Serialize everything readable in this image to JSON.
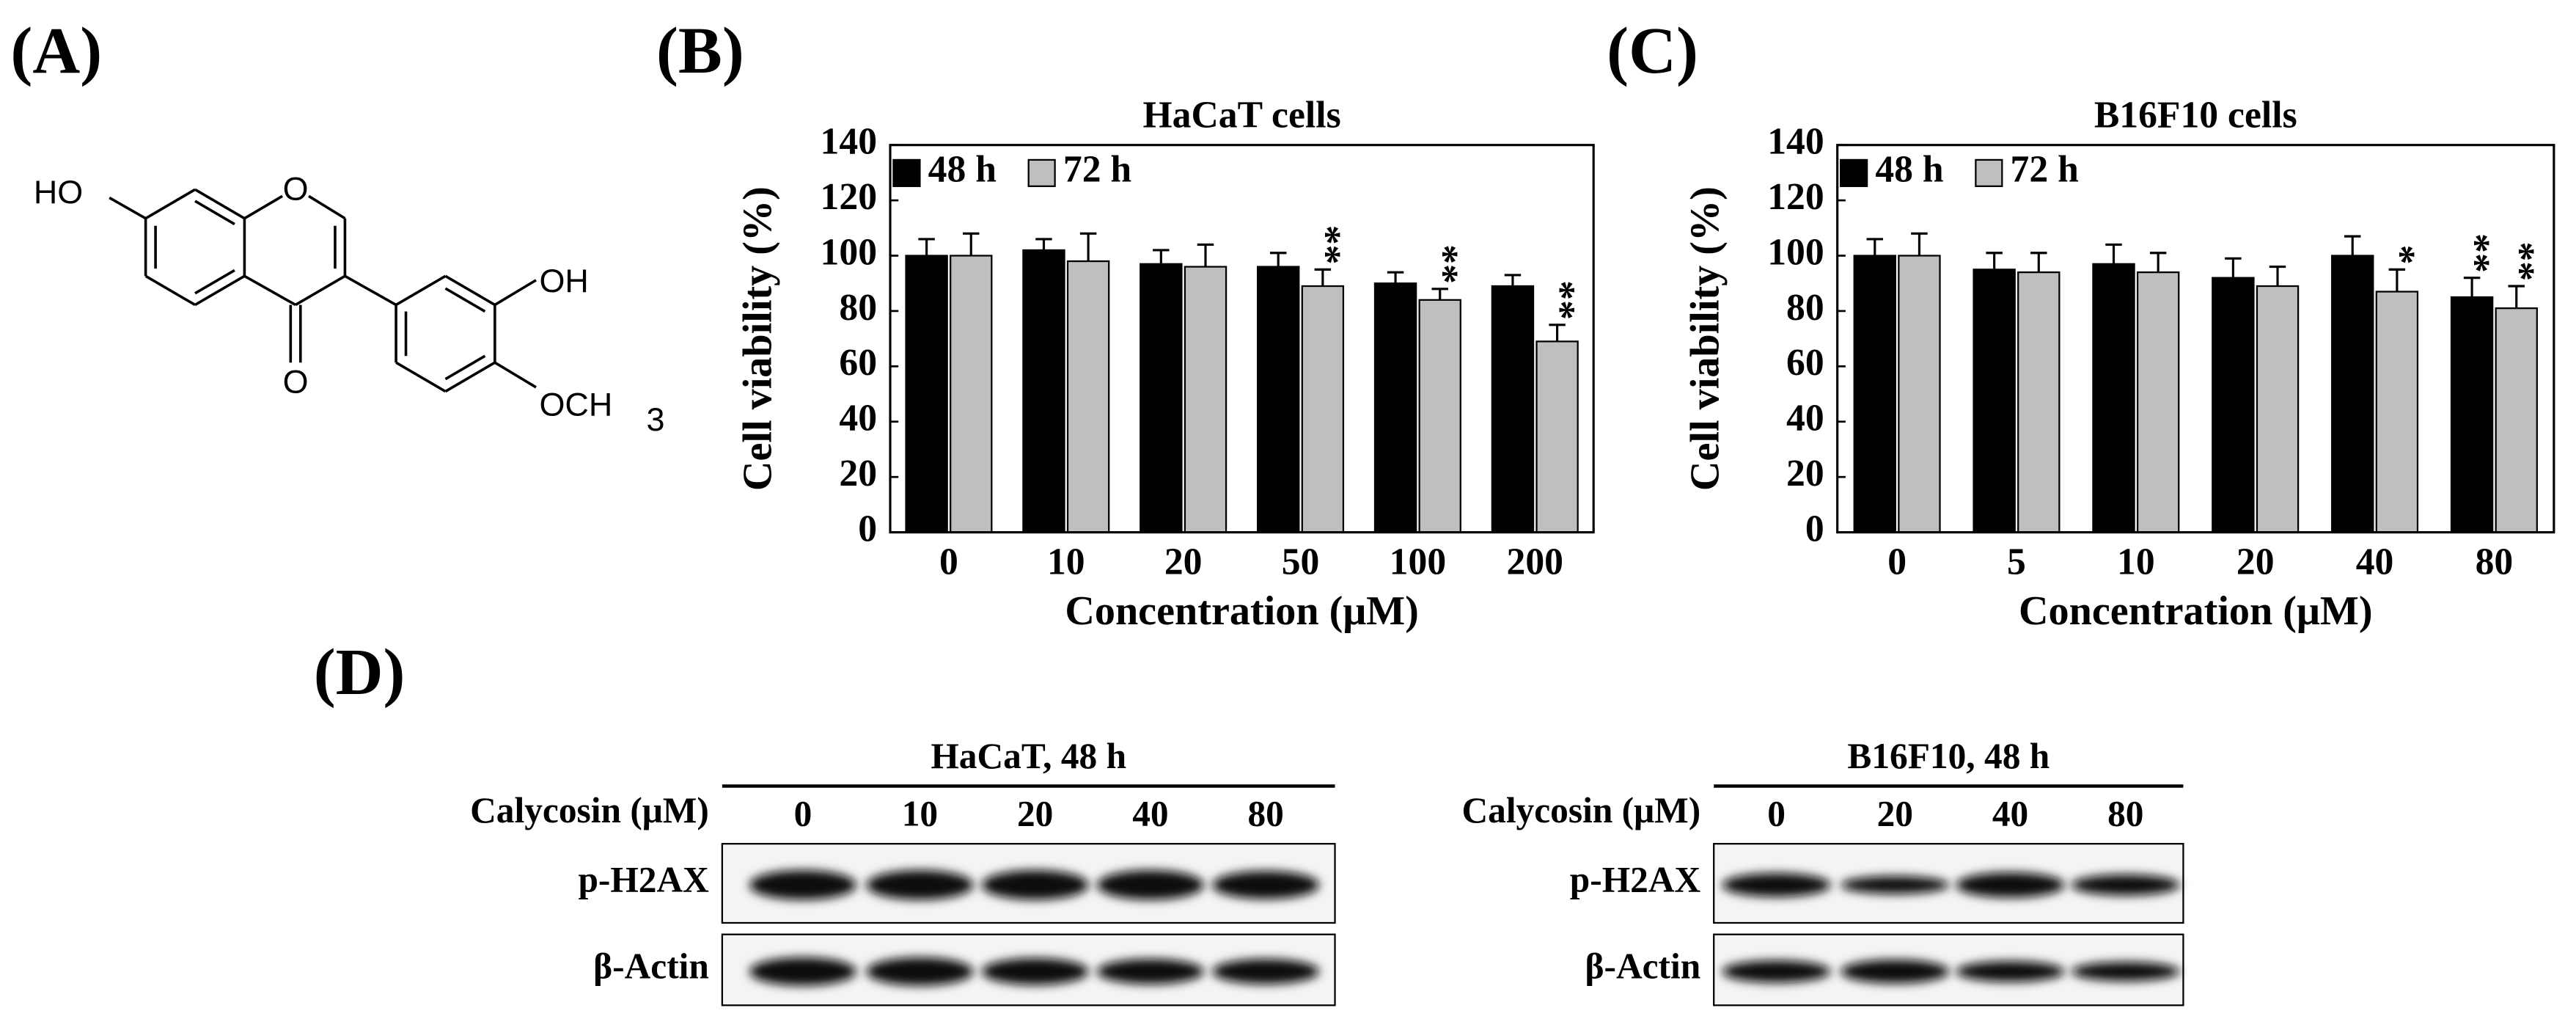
{
  "panel_labels": [
    "(A)",
    "(B)",
    "(C)",
    "(D)"
  ],
  "structure": {
    "labels": [
      "HO",
      "O",
      "O",
      "OH",
      "OCH",
      "3"
    ]
  },
  "chart_data": [
    {
      "type": "bar",
      "title": "HaCaT cells",
      "xlabel": "Concentration (μM)",
      "ylabel": "Cell viability (%)",
      "categories": [
        "0",
        "10",
        "20",
        "50",
        "100",
        "200"
      ],
      "series": [
        {
          "name": "48 h",
          "color": "#000000",
          "values": [
            100,
            102,
            97,
            96,
            90,
            89
          ],
          "errors": [
            6,
            4,
            5,
            5,
            4,
            4
          ],
          "annotations": [
            null,
            null,
            null,
            null,
            null,
            null
          ]
        },
        {
          "name": "72 h",
          "color": "#bfbfbf",
          "values": [
            100,
            98,
            96,
            89,
            84,
            69
          ],
          "errors": [
            8,
            10,
            8,
            6,
            4,
            6
          ],
          "annotations": [
            null,
            null,
            null,
            "**",
            "**",
            "**"
          ]
        }
      ],
      "ylim": [
        0,
        140
      ],
      "yticks": [
        0,
        20,
        40,
        60,
        80,
        100,
        120,
        140
      ],
      "legend": "upper left"
    },
    {
      "type": "bar",
      "title": "B16F10 cells",
      "xlabel": "Concentration (μM)",
      "ylabel": "Cell viability (%)",
      "categories": [
        "0",
        "5",
        "10",
        "20",
        "40",
        "80"
      ],
      "series": [
        {
          "name": "48 h",
          "color": "#000000",
          "values": [
            100,
            95,
            97,
            92,
            100,
            85
          ],
          "errors": [
            6,
            6,
            7,
            7,
            7,
            7
          ],
          "annotations": [
            null,
            null,
            null,
            null,
            null,
            "**"
          ]
        },
        {
          "name": "72 h",
          "color": "#bfbfbf",
          "values": [
            100,
            94,
            94,
            89,
            87,
            81
          ],
          "errors": [
            8,
            7,
            7,
            7,
            8,
            8
          ],
          "annotations": [
            null,
            null,
            null,
            null,
            "*",
            "**"
          ]
        }
      ],
      "ylim": [
        0,
        140
      ],
      "yticks": [
        0,
        20,
        40,
        60,
        80,
        100,
        120,
        140
      ],
      "legend": "upper left"
    }
  ],
  "blots": [
    {
      "title": "HaCaT, 48 h",
      "treatment_label": "Calycosin (μM)",
      "lanes": [
        "0",
        "10",
        "20",
        "40",
        "80"
      ],
      "rows": [
        "p-H2AX",
        "β-Actin"
      ]
    },
    {
      "title": "B16F10, 48 h",
      "treatment_label": "Calycosin (μM)",
      "lanes": [
        "0",
        "20",
        "40",
        "80"
      ],
      "rows": [
        "p-H2AX",
        "β-Actin"
      ]
    }
  ]
}
